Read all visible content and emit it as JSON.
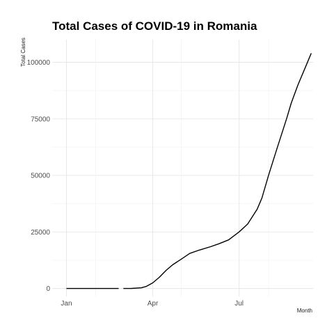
{
  "chart_data": {
    "type": "line",
    "title": "Total Cases of COVID-19 in Romania",
    "xlabel": "Month",
    "ylabel": "Total Cases",
    "ylim": [
      -3500,
      110000
    ],
    "grid": true,
    "legend": "none",
    "x_tick_labels": [
      {
        "label": "Jan",
        "month": 1
      },
      {
        "label": "Apr",
        "month": 4
      },
      {
        "label": "Jul",
        "month": 7
      }
    ],
    "y_tick_labels": [
      {
        "label": "0",
        "value": 0
      },
      {
        "label": "25000",
        "value": 25000
      },
      {
        "label": "50000",
        "value": 50000
      },
      {
        "label": "75000",
        "value": 75000
      },
      {
        "label": "100000",
        "value": 100000
      }
    ],
    "series": [
      {
        "segments": [
          {
            "x": [
              "2020-01-01",
              "2020-02-25"
            ],
            "y": [
              0,
              0
            ]
          },
          {
            "x": [
              "2020-03-01",
              "2020-03-10",
              "2020-03-20",
              "2020-03-25",
              "2020-04-01",
              "2020-04-08",
              "2020-04-15",
              "2020-04-22",
              "2020-05-01",
              "2020-05-10",
              "2020-05-20",
              "2020-06-01",
              "2020-06-10",
              "2020-06-20",
              "2020-07-01",
              "2020-07-10",
              "2020-07-20",
              "2020-07-25",
              "2020-08-01",
              "2020-08-10",
              "2020-08-20",
              "2020-08-25",
              "2020-09-01",
              "2020-09-10",
              "2020-09-15"
            ],
            "y": [
              0,
              50,
              300,
              900,
              2500,
              5000,
              8000,
              10500,
              13000,
              15500,
              17000,
              18500,
              19800,
              21500,
              25000,
              28500,
              35000,
              40000,
              50000,
              62000,
              75000,
              82000,
              90000,
              99000,
              104000
            ]
          }
        ]
      }
    ]
  }
}
